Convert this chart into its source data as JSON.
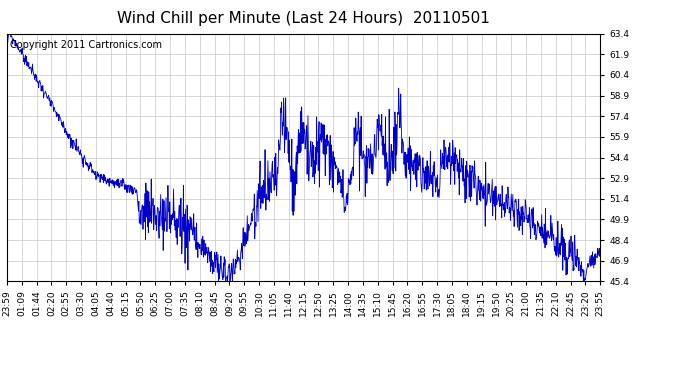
{
  "title": "Wind Chill per Minute (Last 24 Hours)  20110501",
  "copyright_text": "Copyright 2011 Cartronics.com",
  "line_color": "#0000cc",
  "bg_color": "#ffffff",
  "grid_color": "#c8c8c8",
  "ylim": [
    45.4,
    63.4
  ],
  "yticks": [
    45.4,
    46.9,
    48.4,
    49.9,
    51.4,
    52.9,
    54.4,
    55.9,
    57.4,
    58.9,
    60.4,
    61.9,
    63.4
  ],
  "xtick_labels": [
    "23:59",
    "01:09",
    "01:44",
    "02:20",
    "02:55",
    "03:30",
    "04:05",
    "04:40",
    "05:15",
    "05:50",
    "06:25",
    "07:00",
    "07:35",
    "08:10",
    "08:45",
    "09:20",
    "09:55",
    "10:30",
    "11:05",
    "11:40",
    "12:15",
    "12:50",
    "13:25",
    "14:00",
    "14:35",
    "15:10",
    "15:45",
    "16:20",
    "16:55",
    "17:30",
    "18:05",
    "18:40",
    "19:15",
    "19:50",
    "20:25",
    "21:00",
    "21:35",
    "22:10",
    "22:45",
    "23:20",
    "23:55"
  ],
  "title_fontsize": 11,
  "tick_fontsize": 6.5,
  "copyright_fontsize": 7
}
